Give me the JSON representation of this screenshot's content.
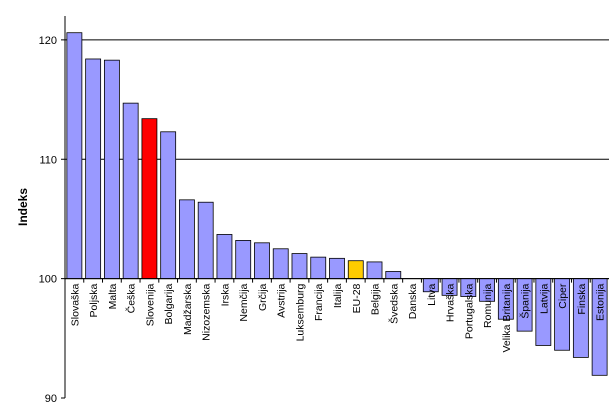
{
  "chart_data": {
    "type": "bar",
    "title": "",
    "xlabel": "",
    "ylabel": "Indeks",
    "ylim": [
      90,
      122
    ],
    "yticks": [
      90,
      100,
      110,
      120
    ],
    "grid": "horizontal",
    "baseline": 100,
    "categories": [
      "Slovaška",
      "Poljska",
      "Malta",
      "Češka",
      "Slovenija",
      "Bolgarija",
      "Madžarska",
      "Nizozemska",
      "Irska",
      "Nemčija",
      "Grčija",
      "Avstrija",
      "Luksemburg",
      "Francija",
      "Italija",
      "EU-28",
      "Belgija",
      "Švedska",
      "Danska",
      "Litva",
      "Hrvaška",
      "Portugalska",
      "Romunija",
      "Velika Britanija",
      "Španija",
      "Latvija",
      "Ciper",
      "Finska",
      "Estonija"
    ],
    "values": [
      120.6,
      118.4,
      118.3,
      114.7,
      113.4,
      112.3,
      106.6,
      106.4,
      103.7,
      103.2,
      103.0,
      102.5,
      102.1,
      101.8,
      101.7,
      101.5,
      101.4,
      100.6,
      100.0,
      98.9,
      98.6,
      98.5,
      98.1,
      96.6,
      95.6,
      94.4,
      94.0,
      93.4,
      91.9
    ],
    "colors": {
      "default": "#9999ff",
      "highlight": "#ff0000",
      "reference": "#ffcc00",
      "stroke": "#000000",
      "grid": "#000000"
    },
    "highlight": [
      "Slovenija"
    ],
    "reference": [
      "EU-28"
    ]
  }
}
